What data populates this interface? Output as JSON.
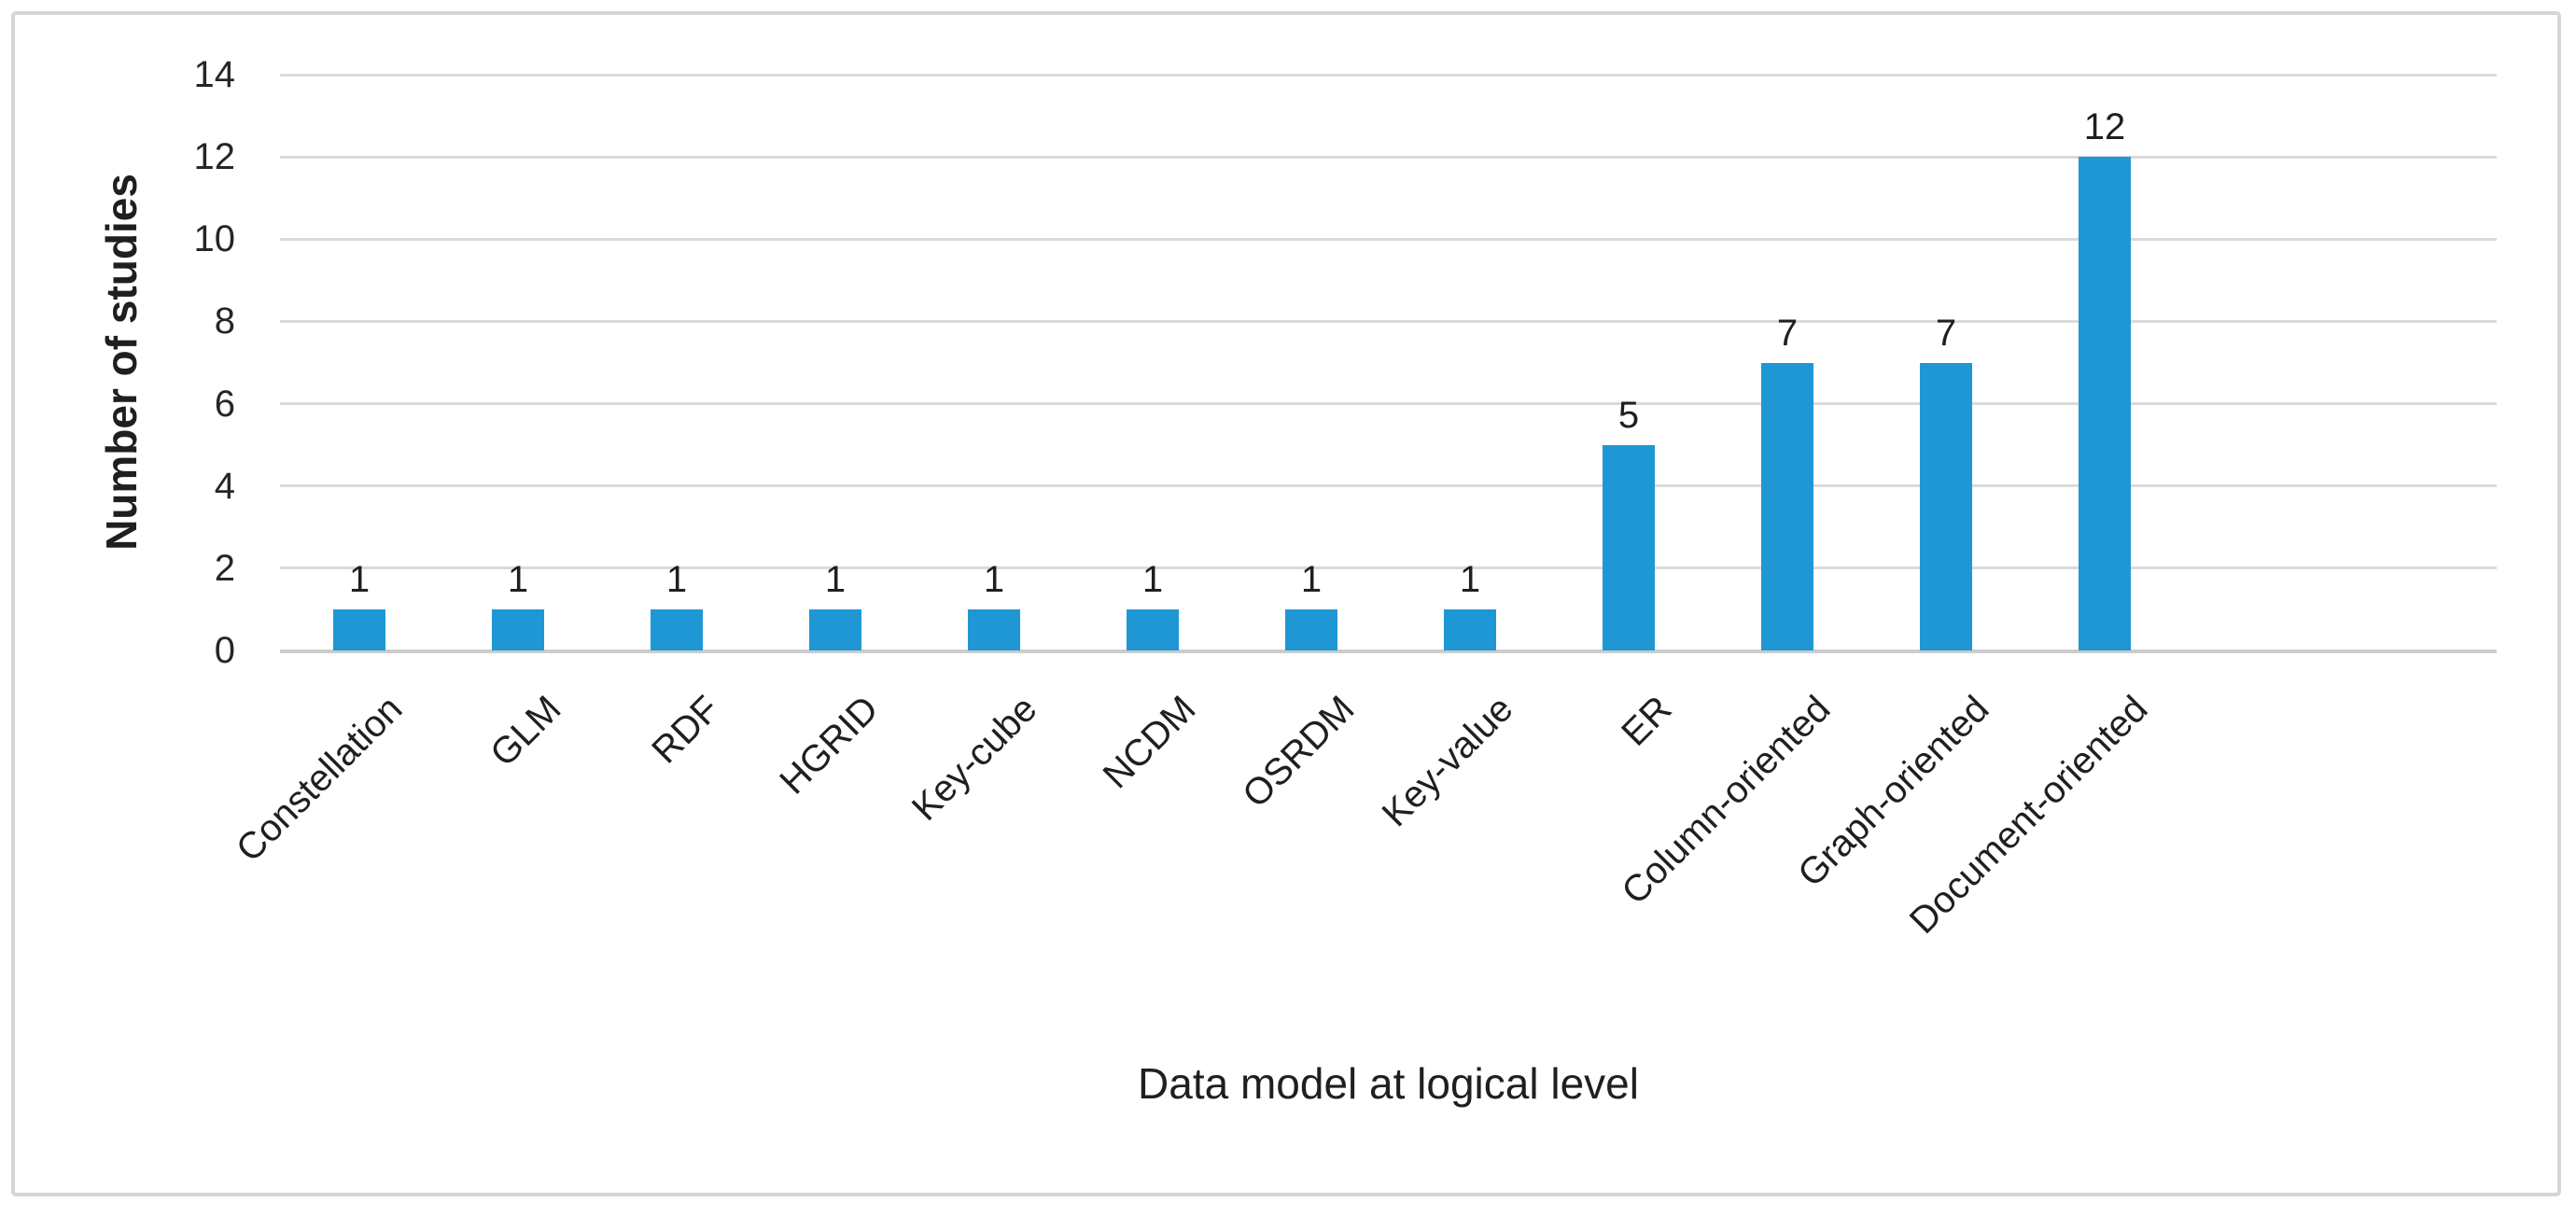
{
  "chart_data": {
    "type": "bar",
    "title": "",
    "categories": [
      "Constellation",
      "GLM",
      "RDF",
      "HGRID",
      "Key-cube",
      "NCDM",
      "OSRDM",
      "Key-value",
      "ER",
      "Column-oriented",
      "Graph-oriented",
      "Document-oriented"
    ],
    "values": [
      1,
      1,
      1,
      1,
      1,
      1,
      1,
      1,
      5,
      7,
      7,
      12
    ],
    "data_labels": [
      "1",
      "1",
      "1",
      "1",
      "1",
      "1",
      "1",
      "1",
      "5",
      "7",
      "7",
      "12"
    ],
    "xlabel": "Data model at logical level",
    "ylabel": "Number of studies",
    "yticks": [
      0,
      2,
      4,
      6,
      8,
      10,
      12,
      14
    ],
    "ylim": [
      0,
      14
    ],
    "grid": "horizontal gridlines on",
    "legend": "none",
    "bar_color": "#2097d5"
  },
  "colors": {
    "bar": "#2097d5",
    "gridline": "#dadada",
    "axis_line": "#cccccc",
    "text": "#1f1f1f",
    "frame_border": "#d6d6d6",
    "background": "#ffffff"
  }
}
